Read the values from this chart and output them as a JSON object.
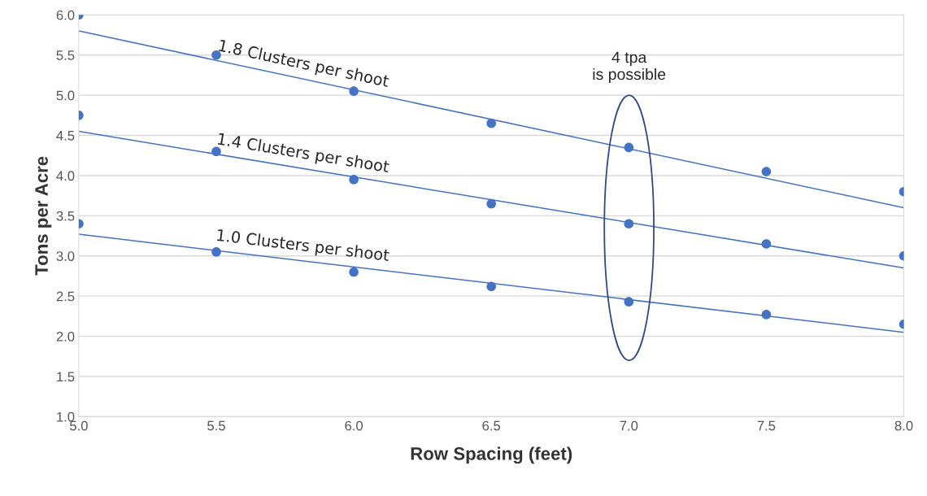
{
  "chart_data": {
    "type": "scatter",
    "xlabel": "Row Spacing (feet)",
    "ylabel": "Tons per Acre",
    "series": [
      {
        "marker": "circle",
        "color": "#4472c4",
        "x": [
          5.0,
          5.5,
          6.0,
          6.5,
          7.0,
          7.5,
          8.0
        ],
        "values": [
          6.0,
          5.5,
          5.05,
          4.65,
          4.35,
          4.05,
          3.8
        ]
      },
      {
        "marker": "circle",
        "color": "#4472c4",
        "x": [
          5.0,
          5.5,
          6.0,
          6.5,
          7.0,
          7.5,
          8.0
        ],
        "values": [
          4.75,
          4.3,
          3.95,
          3.65,
          3.4,
          3.15,
          3.0
        ]
      },
      {
        "marker": "circle",
        "color": "#4472c4",
        "x": [
          5.0,
          5.5,
          6.0,
          6.5,
          7.0,
          7.5,
          8.0
        ],
        "values": [
          3.4,
          3.05,
          2.8,
          2.62,
          2.43,
          2.27,
          2.15
        ]
      },
      {
        "type": "line",
        "marker": "none",
        "name": "1.8 Clusters per shoot",
        "color": "#4472c4",
        "x": [
          5.0,
          8.0
        ],
        "values": [
          5.8,
          3.6
        ]
      },
      {
        "type": "line",
        "marker": "none",
        "name": "1.4 Clusters per shoot",
        "color": "#4472c4",
        "x": [
          5.0,
          8.0
        ],
        "values": [
          4.55,
          2.85
        ]
      },
      {
        "type": "line",
        "marker": "none",
        "name": "1.0 Clusters per shoot",
        "color": "#4472c4",
        "x": [
          5.0,
          8.0
        ],
        "values": [
          3.27,
          2.05
        ]
      }
    ],
    "annotations": [
      "4 tpa\nis possible"
    ],
    "xlim": [
      5.0,
      8.0
    ],
    "ylim": [
      1.0,
      6.0
    ],
    "xticks": [
      {
        "value": 5.0,
        "label": "5.0"
      },
      {
        "value": 5.5,
        "label": "5.5"
      },
      {
        "value": 6.0,
        "label": "6.0"
      },
      {
        "value": 6.5,
        "label": "6.5"
      },
      {
        "value": 7.0,
        "label": "7.0"
      },
      {
        "value": 7.5,
        "label": "7.5"
      },
      {
        "value": 8.0,
        "label": "8.0"
      }
    ],
    "yticks": [
      {
        "value": 1.0,
        "label": "1.0"
      },
      {
        "value": 1.5,
        "label": "1.5"
      },
      {
        "value": 2.0,
        "label": "2.0"
      },
      {
        "value": 2.5,
        "label": "2.5"
      },
      {
        "value": 3.0,
        "label": "3.0"
      },
      {
        "value": 3.5,
        "label": "3.5"
      },
      {
        "value": 4.0,
        "label": "4.0"
      },
      {
        "value": 4.5,
        "label": "4.5"
      },
      {
        "value": 5.0,
        "label": "5.0"
      },
      {
        "value": 5.5,
        "label": "5.5"
      },
      {
        "value": 6.0,
        "label": "6.0"
      }
    ],
    "grid": "y",
    "legend": false,
    "line_style": "solid"
  }
}
